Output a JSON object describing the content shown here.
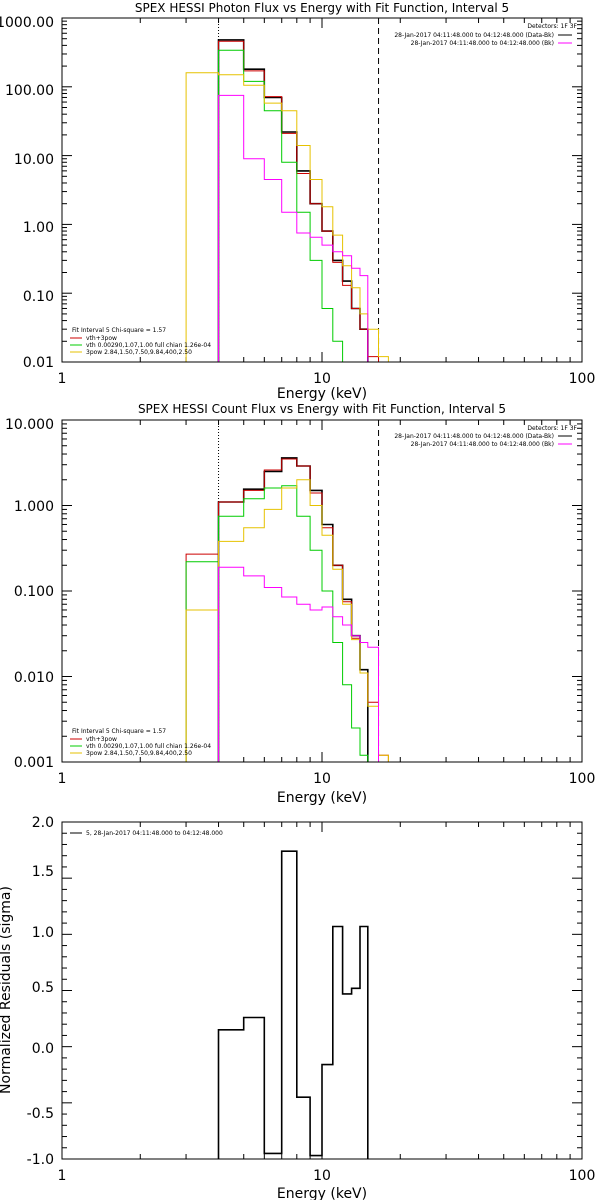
{
  "chart_data": [
    {
      "type": "line",
      "title": "SPEX HESSI Photon Flux vs Energy with Fit Function, Interval 5",
      "xlabel": "Energy (keV)",
      "ylabel": "",
      "xscale": "log",
      "yscale": "log",
      "xlim": [
        1,
        100
      ],
      "ylim": [
        0.01,
        1000
      ],
      "x_ticks": [
        "1",
        "10",
        "100"
      ],
      "y_ticks": [
        "0.01",
        "0.10",
        "1.00",
        "10.00",
        "100.00",
        "1000.00"
      ],
      "energy_range_lines_keV": [
        4.0,
        16.5
      ],
      "detectors_label": "Detectors: 1F 3F",
      "time_labels": [
        {
          "text": "28-Jan-2017 04:11:48.000 to 04:12:48.000 (Data-Bk)",
          "color": "#000000"
        },
        {
          "text": "28-Jan-2017 04:11:48.000 to 04:12:48.000 (Bk)",
          "color": "#ff00ff"
        }
      ],
      "legend": {
        "title": "Fit Interval 5   Chi-square = 1.57",
        "entries": [
          {
            "label": "vth+3pow",
            "color": "#cc0000"
          },
          {
            "label": "vth 0.00290,1.07,1.00  full chian 1.26e-04",
            "color": "#00cc00"
          },
          {
            "label": "3pow 2.84,1.50,7.50,9.84,400,2.50",
            "color": "#e6c200"
          }
        ]
      },
      "bin_edges": [
        3.0,
        4.0,
        5.0,
        6.0,
        7.0,
        8.0,
        9.0,
        10.0,
        11.0,
        12.0,
        13.0,
        14.0,
        15.0,
        16.5,
        18.0
      ],
      "series": [
        {
          "name": "Data-Bk",
          "color": "#000000",
          "start": 1,
          "values": [
            480,
            180,
            70,
            22,
            6,
            2,
            0.8,
            0.3,
            0.15,
            0.06,
            0.03
          ]
        },
        {
          "name": "vth+3pow",
          "color": "#cc0000",
          "start": 0,
          "values": [
            0.01,
            460,
            170,
            72,
            21,
            5.5,
            2,
            0.8,
            0.28,
            0.13,
            0.06,
            0.03,
            0.012
          ]
        },
        {
          "name": "vth",
          "color": "#00cc00",
          "start": 1,
          "values": [
            340,
            120,
            45,
            8,
            1.5,
            0.3,
            0.06,
            0.02,
            0.004
          ]
        },
        {
          "name": "3pow",
          "color": "#e6c200",
          "start": 0,
          "values": [
            160,
            150,
            105,
            58,
            45,
            14,
            4.5,
            1.8,
            0.7,
            0.25,
            0.12,
            0.05,
            0.03,
            0.012
          ]
        },
        {
          "name": "Bk",
          "color": "#ff00ff",
          "start": 1,
          "values": [
            75,
            9,
            4.5,
            1.5,
            0.75,
            0.65,
            0.5,
            0.4,
            0.35,
            0.23,
            0.18
          ]
        }
      ]
    },
    {
      "type": "line",
      "title": "SPEX HESSI Count Flux vs Energy with Fit Function, Interval 5",
      "xlabel": "Energy (keV)",
      "ylabel": "",
      "xscale": "log",
      "yscale": "log",
      "xlim": [
        1,
        100
      ],
      "ylim": [
        0.001,
        10
      ],
      "x_ticks": [
        "1",
        "10",
        "100"
      ],
      "y_ticks": [
        "0.001",
        "0.010",
        "0.100",
        "1.000",
        "10.000"
      ],
      "energy_range_lines_keV": [
        4.0,
        16.5
      ],
      "detectors_label": "Detectors: 1F 3F",
      "time_labels": [
        {
          "text": "28-Jan-2017 04:11:48.000 to 04:12:48.000 (Data-Bk)",
          "color": "#000000"
        },
        {
          "text": "28-Jan-2017 04:11:48.000 to 04:12:48.000 (Bk)",
          "color": "#ff00ff"
        }
      ],
      "legend": {
        "title": "Fit Interval 5   Chi-square = 1.57",
        "entries": [
          {
            "label": "vth+3pow",
            "color": "#cc0000"
          },
          {
            "label": "vth 0.00290,1.07,1.00  full chian 1.26e-04",
            "color": "#00cc00"
          },
          {
            "label": "3pow 2.84,1.50,7.50,9.84,400,2.50",
            "color": "#e6c200"
          }
        ]
      },
      "bin_edges": [
        3.0,
        4.0,
        5.0,
        6.0,
        7.0,
        8.0,
        9.0,
        10.0,
        11.0,
        12.0,
        13.0,
        14.0,
        15.0,
        16.5,
        18.0
      ],
      "series": [
        {
          "name": "Data-Bk",
          "color": "#000000",
          "start": 1,
          "values": [
            1.1,
            1.55,
            2.5,
            3.6,
            2.9,
            1.5,
            0.6,
            0.2,
            0.08,
            0.03,
            0.012
          ]
        },
        {
          "name": "vth+3pow",
          "color": "#cc0000",
          "start": 0,
          "values": [
            0.27,
            1.1,
            1.5,
            2.6,
            3.5,
            2.9,
            1.4,
            0.55,
            0.2,
            0.075,
            0.028,
            0.011,
            0.005,
            0.0012
          ]
        },
        {
          "name": "vth",
          "color": "#00cc00",
          "start": 0,
          "values": [
            0.22,
            0.75,
            1.2,
            1.6,
            1.7,
            0.75,
            0.3,
            0.1,
            0.025,
            0.008,
            0.0025,
            0.0012
          ]
        },
        {
          "name": "3pow",
          "color": "#e6c200",
          "start": 0,
          "values": [
            0.06,
            0.38,
            0.55,
            0.9,
            1.6,
            2.0,
            1.0,
            0.45,
            0.18,
            0.07,
            0.027,
            0.011,
            0.0045,
            0.0012
          ]
        },
        {
          "name": "Bk",
          "color": "#ff00ff",
          "start": 1,
          "values": [
            0.19,
            0.15,
            0.11,
            0.085,
            0.07,
            0.06,
            0.065,
            0.05,
            0.04,
            0.03,
            0.025,
            0.022
          ]
        }
      ]
    },
    {
      "type": "line",
      "title": "",
      "xlabel": "Energy (keV)",
      "ylabel": "Normalized Residuals (sigma)",
      "xscale": "log",
      "yscale": "linear",
      "xlim": [
        1,
        100
      ],
      "ylim": [
        -1.0,
        2.0
      ],
      "x_ticks": [
        "1",
        "10",
        "100"
      ],
      "y_ticks": [
        "-1.0",
        "-0.5",
        "0.0",
        "0.5",
        "1.0",
        "1.5",
        "2.0"
      ],
      "legend": {
        "title": "",
        "entries": [
          {
            "label": "5, 28-Jan-2017 04:11:48.000 to 04:12:48.000",
            "color": "#000000"
          }
        ]
      },
      "bin_edges": [
        4.0,
        5.0,
        6.0,
        7.0,
        8.0,
        9.0,
        10.0,
        11.0,
        12.0,
        13.0,
        14.0,
        15.0,
        16.5
      ],
      "series": [
        {
          "name": "",
          "color": "#000000",
          "start": 0,
          "values": [
            0.15,
            0.26,
            -0.95,
            1.74,
            -0.45,
            -0.97,
            -0.16,
            1.07,
            0.47,
            0.52,
            1.07
          ]
        }
      ]
    }
  ]
}
